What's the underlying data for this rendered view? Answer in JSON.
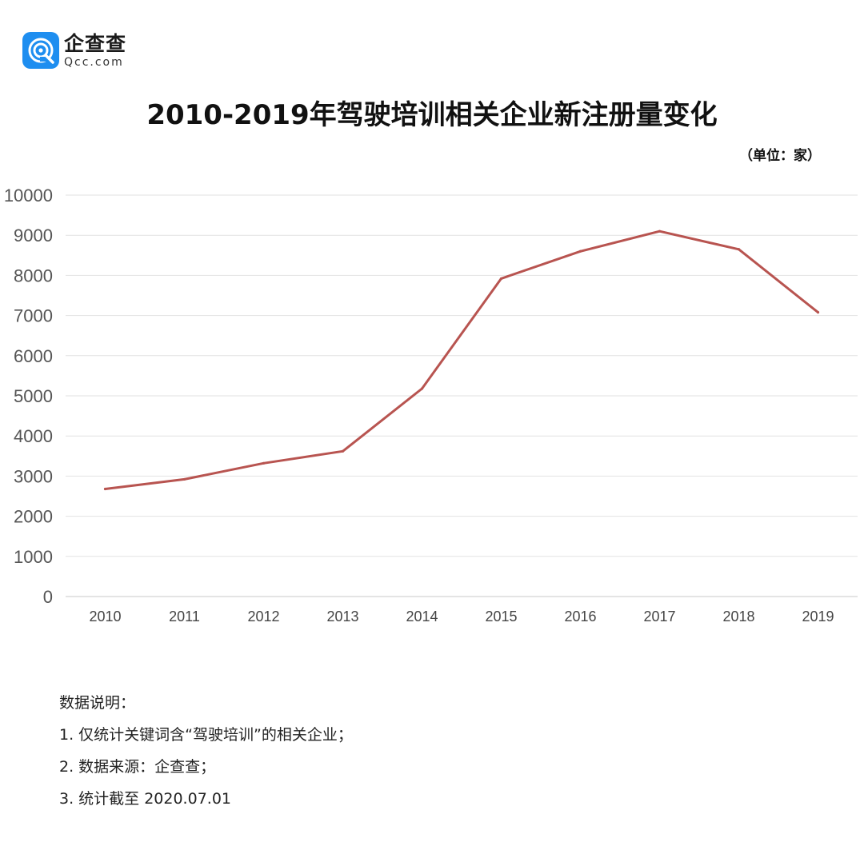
{
  "logo": {
    "name": "企查查",
    "domain": "Qcc.com",
    "color": "#1e8ef0"
  },
  "chart_data": {
    "type": "line",
    "title": "2010-2019年驾驶培训相关企业新注册量变化",
    "unit": "（单位：家）",
    "xlabel": "",
    "ylabel": "",
    "categories": [
      "2010",
      "2011",
      "2012",
      "2013",
      "2014",
      "2015",
      "2016",
      "2017",
      "2018",
      "2019"
    ],
    "series": [
      {
        "values": [
          2680,
          2920,
          3320,
          3620,
          5180,
          7920,
          8600,
          9100,
          8650,
          7080
        ],
        "color": "#b85450"
      }
    ],
    "ylim": [
      0,
      10000
    ],
    "yticks": [
      "0",
      "1000",
      "2000",
      "3000",
      "4000",
      "5000",
      "6000",
      "7000",
      "8000",
      "9000",
      "10000"
    ],
    "grid": true,
    "legend": "none"
  },
  "notes": {
    "heading": "数据说明：",
    "items": [
      "1. 仅统计关键词含“驾驶培训”的相关企业；",
      "2. 数据来源：企查查；",
      "3. 统计截至 2020.07.01"
    ]
  }
}
